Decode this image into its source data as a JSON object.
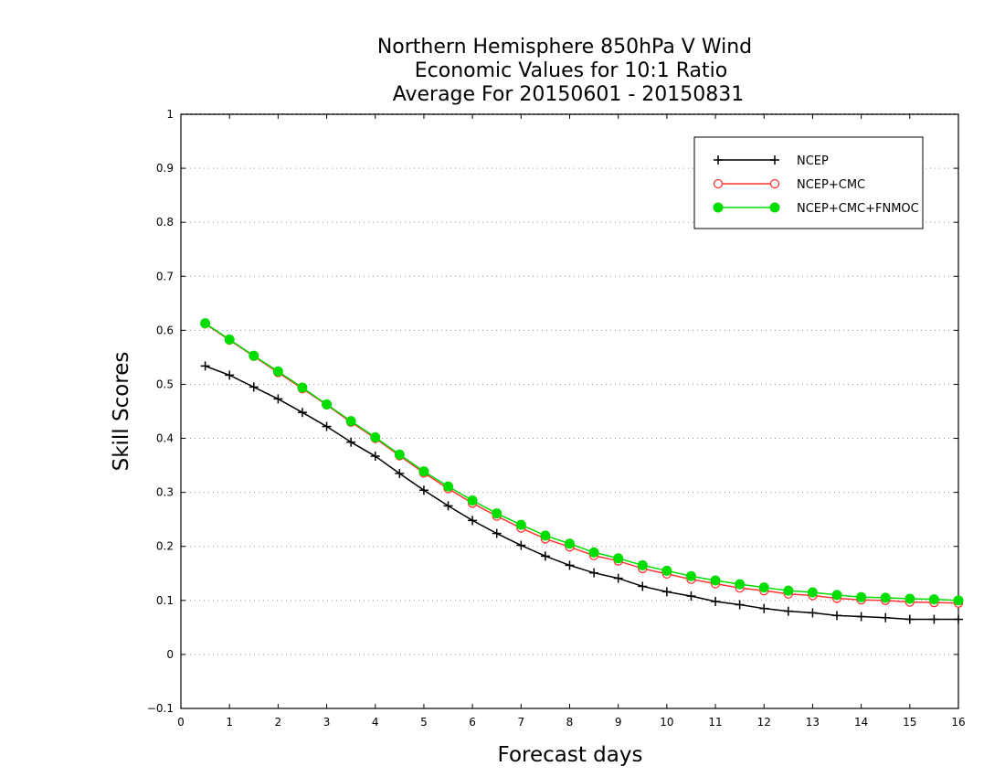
{
  "chart_data": {
    "type": "line",
    "title": [
      "Northern Hemisphere 850hPa V Wind",
      "Economic Values for 10:1 Ratio",
      "Average For 20150601 - 20150831"
    ],
    "xlabel": "Forecast days",
    "ylabel": "Skill Scores",
    "xlim": [
      0,
      16
    ],
    "ylim": [
      -0.1,
      1
    ],
    "xticks": [
      0,
      1,
      2,
      3,
      4,
      5,
      6,
      7,
      8,
      9,
      10,
      11,
      12,
      13,
      14,
      15,
      16
    ],
    "yticks": [
      -0.1,
      0,
      0.1,
      0.2,
      0.3,
      0.4,
      0.5,
      0.6,
      0.7,
      0.8,
      0.9,
      1
    ],
    "ytick_labels": [
      "−0.1",
      "0",
      "0.1",
      "0.2",
      "0.3",
      "0.4",
      "0.5",
      "0.6",
      "0.7",
      "0.8",
      "0.9",
      "1"
    ],
    "grid": "horizontal-dotted",
    "legend_position": "top-right",
    "x": [
      0.5,
      1,
      1.5,
      2,
      2.5,
      3,
      3.5,
      4,
      4.5,
      5,
      5.5,
      6,
      6.5,
      7,
      7.5,
      8,
      8.5,
      9,
      9.5,
      10,
      10.5,
      11,
      11.5,
      12,
      12.5,
      13,
      13.5,
      14,
      14.5,
      15,
      15.5,
      16
    ],
    "series": [
      {
        "name": "NCEP",
        "color": "#000000",
        "marker": "plus",
        "values": [
          0.534,
          0.517,
          0.495,
          0.473,
          0.448,
          0.422,
          0.393,
          0.367,
          0.335,
          0.304,
          0.275,
          0.248,
          0.224,
          0.202,
          0.182,
          0.165,
          0.151,
          0.141,
          0.126,
          0.116,
          0.108,
          0.098,
          0.092,
          0.085,
          0.08,
          0.077,
          0.072,
          0.07,
          0.068,
          0.065,
          0.065,
          0.065
        ]
      },
      {
        "name": "NCEP+CMC",
        "color": "#ff3333",
        "marker": "open-circle",
        "values": [
          0.612,
          0.582,
          0.552,
          0.522,
          0.492,
          0.462,
          0.43,
          0.4,
          0.368,
          0.336,
          0.307,
          0.28,
          0.256,
          0.234,
          0.214,
          0.199,
          0.183,
          0.173,
          0.159,
          0.149,
          0.139,
          0.131,
          0.123,
          0.118,
          0.112,
          0.109,
          0.104,
          0.101,
          0.1,
          0.097,
          0.096,
          0.095
        ]
      },
      {
        "name": "NCEP+CMC+FNMOC",
        "color": "#00dd00",
        "marker": "filled-circle",
        "values": [
          0.613,
          0.583,
          0.553,
          0.524,
          0.494,
          0.463,
          0.432,
          0.402,
          0.37,
          0.339,
          0.311,
          0.285,
          0.261,
          0.24,
          0.22,
          0.205,
          0.189,
          0.178,
          0.165,
          0.155,
          0.145,
          0.137,
          0.13,
          0.124,
          0.118,
          0.115,
          0.11,
          0.106,
          0.105,
          0.103,
          0.102,
          0.1
        ]
      }
    ]
  }
}
